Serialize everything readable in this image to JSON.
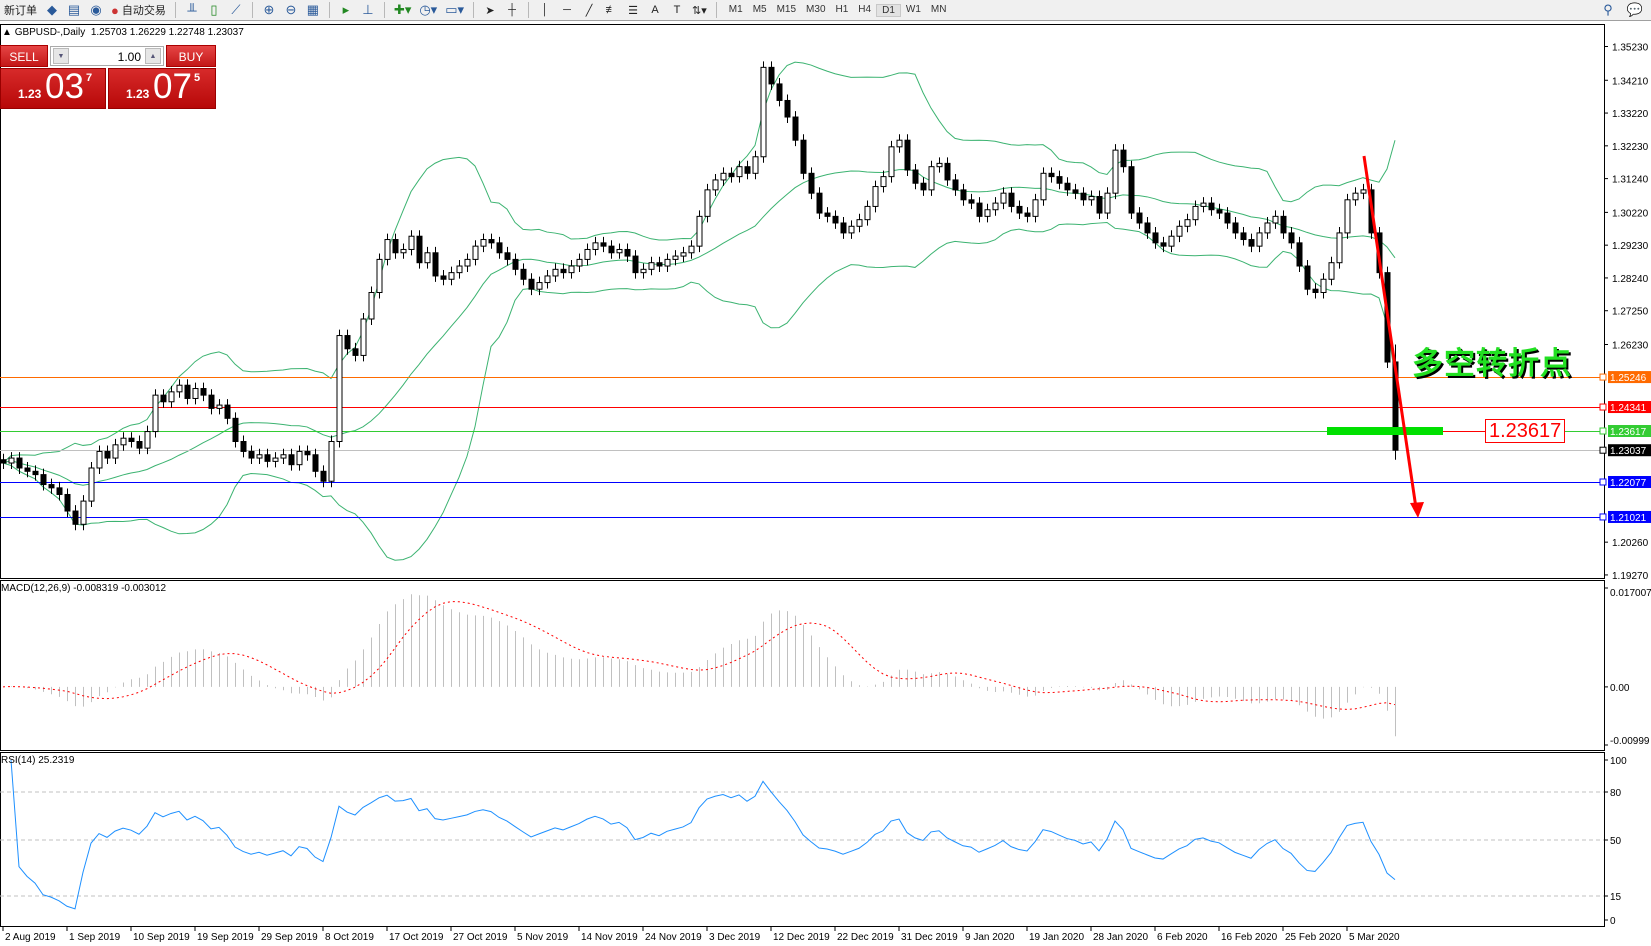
{
  "toolbar": {
    "new_order": "新订单",
    "auto_trading": "自动交易",
    "icons": [
      "gold-icon",
      "market-watch-icon",
      "signal-icon",
      "auto-trading-icon",
      "bar-chart-icon",
      "candlestick-icon",
      "line-chart-icon",
      "zoom-in-icon",
      "zoom-out-icon",
      "tile-windows-icon",
      "autoscroll-icon",
      "chart-shift-icon",
      "indicators-icon",
      "periods-icon",
      "templates-icon",
      "cursor-icon",
      "crosshair-icon",
      "vertical-line-icon",
      "horizontal-line-icon",
      "trendline-icon",
      "fibonacci-icon",
      "fibonacci-fan-icon",
      "text-icon",
      "text-label-icon",
      "arrows-icon",
      "search-icon",
      "chat-icon"
    ],
    "timeframes": [
      "M1",
      "M5",
      "M15",
      "M30",
      "H1",
      "H4",
      "D1",
      "W1",
      "MN"
    ],
    "active_timeframe": "D1"
  },
  "chart_header": {
    "symbol": "GBPUSD-,Daily",
    "ohlc": "1.25703 1.26229 1.22748 1.23037"
  },
  "one_click": {
    "sell": "SELL",
    "buy": "BUY",
    "lot": "1.00",
    "sell_price": {
      "prefix": "1.23",
      "big": "03",
      "sup": "7"
    },
    "buy_price": {
      "prefix": "1.23",
      "big": "07",
      "sup": "5"
    }
  },
  "annotation_text": "多空转折点",
  "annotation_price": "1.23617",
  "colors": {
    "bull": "#ffffff",
    "bear": "#000000",
    "bands": "#3cb371",
    "macd_hist": "#c0c0c0",
    "macd_signal": "#ff0000",
    "rsi": "#1e90ff",
    "arrow": "#ff0000",
    "zone": "#00e000"
  },
  "chart_data": [
    {
      "type": "candlestick",
      "title": "GBPUSD-,Daily",
      "price_ticks": [
        "1.35230",
        "1.34210",
        "1.33220",
        "1.32230",
        "1.31240",
        "1.30220",
        "1.29230",
        "1.28240",
        "1.27250",
        "1.26230",
        "1.25246",
        "1.24341",
        "1.23617",
        "1.23037",
        "1.22077",
        "1.21021",
        "1.20260",
        "1.19270"
      ],
      "ylim": [
        1.1927,
        1.3523
      ],
      "date_labels": [
        "2 Aug 2019",
        "1 Sep 2019",
        "10 Sep 2019",
        "19 Sep 2019",
        "29 Sep 2019",
        "8 Oct 2019",
        "17 Oct 2019",
        "27 Oct 2019",
        "5 Nov 2019",
        "14 Nov 2019",
        "24 Nov 2019",
        "3 Dec 2019",
        "12 Dec 2019",
        "22 Dec 2019",
        "31 Dec 2019",
        "9 Jan 2020",
        "19 Jan 2020",
        "28 Jan 2020",
        "6 Feb 2020",
        "16 Feb 2020",
        "25 Feb 2020",
        "5 Mar 2020"
      ],
      "last_bar": {
        "open": 1.25703,
        "high": 1.26229,
        "low": 1.22748,
        "close": 1.23037
      },
      "close": [
        1.2265,
        1.228,
        1.225,
        1.224,
        1.223,
        1.22,
        1.219,
        1.217,
        1.212,
        1.208,
        1.215,
        1.225,
        1.23,
        1.228,
        1.232,
        1.234,
        1.233,
        1.231,
        1.236,
        1.247,
        1.245,
        1.248,
        1.25,
        1.246,
        1.249,
        1.247,
        1.243,
        1.244,
        1.24,
        1.233,
        1.23,
        1.228,
        1.229,
        1.227,
        1.228,
        1.229,
        1.226,
        1.23,
        1.229,
        1.224,
        1.221,
        1.233,
        1.265,
        1.261,
        1.259,
        1.27,
        1.278,
        1.288,
        1.294,
        1.29,
        1.291,
        1.295,
        1.287,
        1.29,
        1.283,
        1.282,
        1.284,
        1.286,
        1.288,
        1.292,
        1.294,
        1.293,
        1.29,
        1.288,
        1.285,
        1.282,
        1.279,
        1.281,
        1.283,
        1.285,
        1.284,
        1.286,
        1.288,
        1.291,
        1.293,
        1.292,
        1.29,
        1.291,
        1.289,
        1.284,
        1.285,
        1.287,
        1.286,
        1.288,
        1.289,
        1.29,
        1.292,
        1.301,
        1.309,
        1.312,
        1.314,
        1.313,
        1.316,
        1.314,
        1.319,
        1.346,
        1.341,
        1.336,
        1.331,
        1.324,
        1.314,
        1.308,
        1.302,
        1.301,
        1.299,
        1.296,
        1.298,
        1.3,
        1.304,
        1.31,
        1.313,
        1.322,
        1.324,
        1.315,
        1.311,
        1.309,
        1.316,
        1.317,
        1.312,
        1.309,
        1.306,
        1.305,
        1.301,
        1.303,
        1.305,
        1.308,
        1.304,
        1.302,
        1.301,
        1.306,
        1.314,
        1.313,
        1.311,
        1.309,
        1.308,
        1.306,
        1.307,
        1.302,
        1.308,
        1.321,
        1.316,
        1.302,
        1.299,
        1.296,
        1.293,
        1.292,
        1.295,
        1.298,
        1.3,
        1.304,
        1.305,
        1.303,
        1.302,
        1.299,
        1.296,
        1.294,
        1.292,
        1.296,
        1.299,
        1.301,
        1.296,
        1.293,
        1.286,
        1.279,
        1.278,
        1.282,
        1.287,
        1.296,
        1.306,
        1.308,
        1.309,
        1.296,
        1.284,
        1.257,
        1.23037
      ],
      "bollinger": {
        "period": 20,
        "deviation": 2
      },
      "hlines": [
        {
          "price": 1.25246,
          "label": "1.25246",
          "color": "#ff6a00"
        },
        {
          "price": 1.24341,
          "label": "1.24341",
          "color": "#ff0000"
        },
        {
          "price": 1.23617,
          "label": "1.23617",
          "color": "#33cc33"
        },
        {
          "price": 1.23037,
          "label": "1.23037",
          "color": "#000000",
          "line": "#c0c0c0"
        },
        {
          "price": 1.22077,
          "label": "1.22077",
          "color": "#0000ff"
        },
        {
          "price": 1.21021,
          "label": "1.21021",
          "color": "#0000ff"
        }
      ]
    },
    {
      "type": "bar",
      "title": "MACD(12,26,9) -0.008319 -0.003012",
      "ticks": [
        "0.017007",
        "0.00",
        "-0.00999"
      ],
      "ylim": [
        -0.00999,
        0.017007
      ]
    },
    {
      "type": "line",
      "title": "RSI(14) 25.2319",
      "ticks": [
        "100",
        "80",
        "50",
        "15",
        "0"
      ],
      "levels": [
        80,
        50,
        15
      ],
      "ylim": [
        0,
        100
      ]
    }
  ]
}
